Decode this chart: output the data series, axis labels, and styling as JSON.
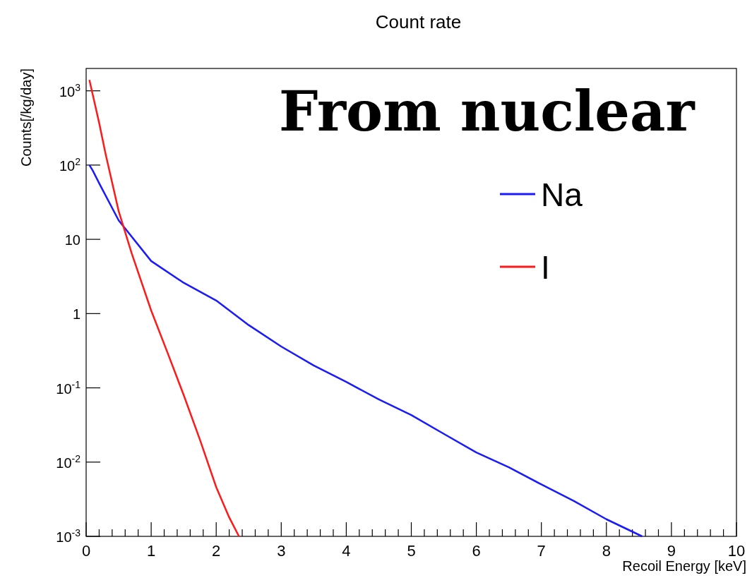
{
  "chart_data": {
    "type": "line",
    "title": "Count rate",
    "xlabel": "Recoil Energy [keV]",
    "ylabel": "Counts[/kg/day]",
    "annotations": [
      "From nuclear"
    ],
    "log": "y",
    "grid": false,
    "legend": "top right",
    "marker": "none",
    "line_style": "solid",
    "xlim": [
      0,
      10
    ],
    "ylim": [
      0.001,
      2000
    ],
    "xticks": [
      0,
      {
        "value": 0.2,
        "label": null
      },
      {
        "value": 0.4,
        "label": null
      },
      {
        "value": 0.6,
        "label": null
      },
      {
        "value": 0.8,
        "label": null
      },
      1,
      {
        "value": 1.2,
        "label": null
      },
      {
        "value": 1.4,
        "label": null
      },
      {
        "value": 1.6,
        "label": null
      },
      {
        "value": 1.8,
        "label": null
      },
      2,
      {
        "value": 2.2,
        "label": null
      },
      {
        "value": 2.4,
        "label": null
      },
      {
        "value": 2.6,
        "label": null
      },
      {
        "value": 2.8,
        "label": null
      },
      3,
      {
        "value": 3.2,
        "label": null
      },
      {
        "value": 3.4,
        "label": null
      },
      {
        "value": 3.6,
        "label": null
      },
      {
        "value": 3.8,
        "label": null
      },
      4,
      {
        "value": 4.2,
        "label": null
      },
      {
        "value": 4.4,
        "label": null
      },
      {
        "value": 4.6,
        "label": null
      },
      {
        "value": 4.8,
        "label": null
      },
      5,
      {
        "value": 5.2,
        "label": null
      },
      {
        "value": 5.4,
        "label": null
      },
      {
        "value": 5.6,
        "label": null
      },
      {
        "value": 5.8,
        "label": null
      },
      6,
      {
        "value": 6.2,
        "label": null
      },
      {
        "value": 6.4,
        "label": null
      },
      {
        "value": 6.6,
        "label": null
      },
      {
        "value": 6.8,
        "label": null
      },
      7,
      {
        "value": 7.2,
        "label": null
      },
      {
        "value": 7.4,
        "label": null
      },
      {
        "value": 7.6,
        "label": null
      },
      {
        "value": 7.8,
        "label": null
      },
      8,
      {
        "value": 8.2,
        "label": null
      },
      {
        "value": 8.4,
        "label": null
      },
      {
        "value": 8.6,
        "label": null
      },
      {
        "value": 8.8,
        "label": null
      },
      9,
      {
        "value": 9.2,
        "label": null
      },
      {
        "value": 9.4,
        "label": null
      },
      {
        "value": 9.6,
        "label": null
      },
      {
        "value": 9.8,
        "label": null
      },
      10
    ],
    "yticks": [
      {
        "value": 0.001,
        "label": "10$^{-3}$"
      },
      {
        "value": 0.01,
        "label": "10$^{-2}$"
      },
      {
        "value": 0.1,
        "label": "10$^{-1}$"
      },
      1,
      10,
      {
        "value": 100,
        "label": "10$^{2}$"
      },
      {
        "value": 1000,
        "label": "10$^{3}$"
      }
    ],
    "series": [
      {
        "name": "Na",
        "color": "#1a1aff",
        "x": [
          0.05,
          0.1,
          0.2,
          0.5,
          1,
          1.5,
          2,
          2.5,
          3,
          3.5,
          4,
          4.5,
          5,
          5.5,
          6,
          6.5,
          7,
          7.5,
          8,
          8.55
        ],
        "values": [
          100,
          85,
          57,
          18,
          5.1,
          2.6,
          1.5,
          0.7,
          0.36,
          0.2,
          0.12,
          0.07,
          0.043,
          0.024,
          0.0135,
          0.0085,
          0.005,
          0.003,
          0.0017,
          0.001
        ]
      },
      {
        "name": "I",
        "color": "#ff1a1a",
        "x": [
          0.05,
          0.1,
          0.2,
          0.3,
          0.5,
          0.7,
          1,
          1.25,
          1.5,
          1.75,
          2,
          2.2,
          2.35
        ],
        "values": [
          1400,
          900,
          370,
          140,
          24,
          6.5,
          1.1,
          0.3,
          0.08,
          0.02,
          0.0046,
          0.0018,
          0.001
        ]
      }
    ]
  }
}
